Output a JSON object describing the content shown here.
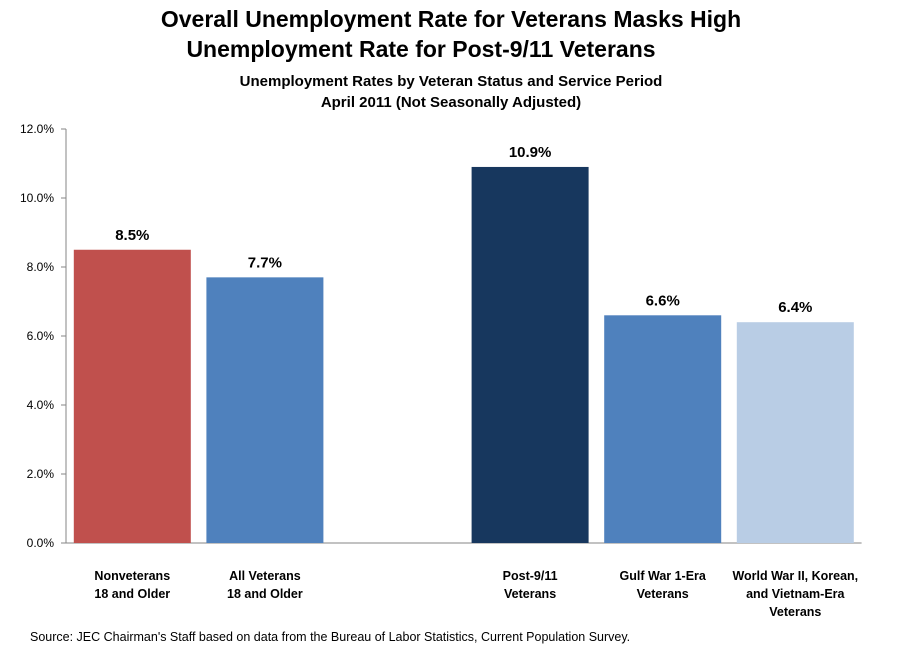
{
  "chart_data": {
    "type": "bar",
    "title": "Overall Unemployment Rate for Veterans Masks High Unemployment Rate for Post-9/11 Veterans",
    "title_lines": [
      "Overall Unemployment Rate for Veterans Masks High",
      "Unemployment Rate for Post-9/11 Veterans"
    ],
    "subtitle_lines": [
      "Unemployment Rates by Veteran Status and Service Period",
      "April 2011 (Not Seasonally Adjusted)"
    ],
    "categories": [
      [
        "Nonveterans",
        "18 and Older"
      ],
      [
        "All Veterans",
        "18 and Older"
      ],
      [],
      [
        "Post-9/11",
        "Veterans"
      ],
      [
        "Gulf War 1-Era",
        "Veterans"
      ],
      [
        "World War II, Korean,",
        "and Vietnam-Era",
        "Veterans"
      ]
    ],
    "values": [
      8.5,
      7.7,
      null,
      10.9,
      6.6,
      6.4
    ],
    "data_labels": [
      "8.5%",
      "7.7%",
      "",
      "10.9%",
      "6.6%",
      "6.4%"
    ],
    "colors": [
      "#C0504D",
      "#4F81BD",
      "",
      "#17375E",
      "#4F81BD",
      "#B9CDE5"
    ],
    "ylim": [
      0,
      12
    ],
    "yticks": [
      "0.0%",
      "2.0%",
      "4.0%",
      "6.0%",
      "8.0%",
      "10.0%",
      "12.0%"
    ],
    "xlabel": "",
    "ylabel": "",
    "grid": false,
    "legend": "none"
  },
  "source": "Source: JEC Chairman's Staff based on data from the Bureau of Labor Statistics, Current Population Survey."
}
